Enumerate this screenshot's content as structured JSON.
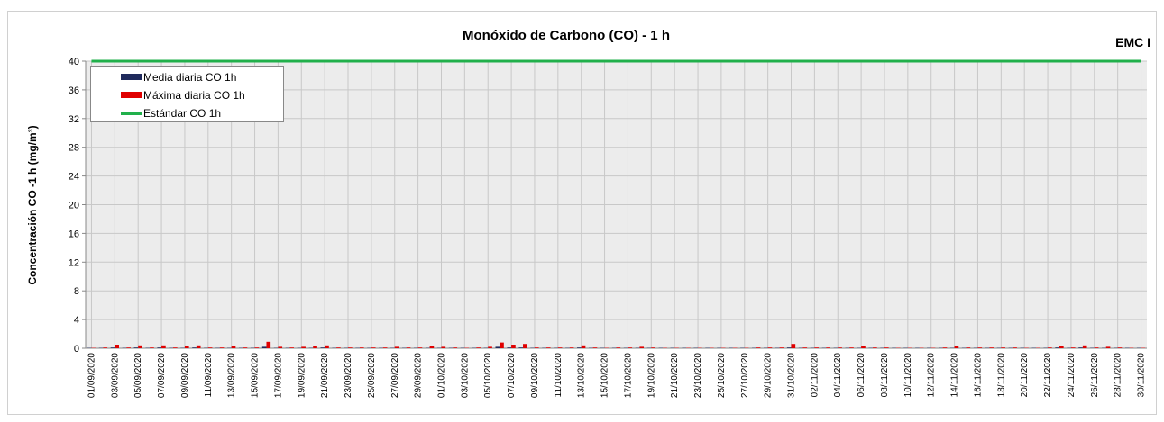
{
  "chart_data": {
    "type": "bar",
    "title": "Monóxido de Carbono (CO) - 1 h",
    "annotation": "EMC I",
    "y_label": "Concentración  CO -1 h (mg/m³)",
    "categories": [
      "01/09/2020",
      null,
      "03/09/2020",
      null,
      "05/09/2020",
      null,
      "07/09/2020",
      null,
      "09/09/2020",
      null,
      "11/09/2020",
      null,
      "13/09/2020",
      null,
      "15/09/2020",
      null,
      "17/09/2020",
      null,
      "19/09/2020",
      null,
      "21/09/2020",
      null,
      "23/09/2020",
      null,
      "25/09/2020",
      null,
      "27/09/2020",
      null,
      "29/09/2020",
      null,
      "01/10/2020",
      null,
      "03/10/2020",
      null,
      "05/10/2020",
      null,
      "07/10/2020",
      null,
      "09/10/2020",
      null,
      "11/10/2020",
      null,
      "13/10/2020",
      null,
      "15/10/2020",
      null,
      "17/10/2020",
      null,
      "19/10/2020",
      null,
      "21/10/2020",
      null,
      "23/10/2020",
      null,
      "25/10/2020",
      null,
      "27/10/2020",
      null,
      "29/10/2020",
      null,
      "31/10/2020",
      null,
      "02/11/2020",
      null,
      "04/11/2020",
      null,
      "06/11/2020",
      null,
      "08/11/2020",
      null,
      "10/11/2020",
      null,
      "12/11/2020",
      null,
      "14/11/2020",
      null,
      "16/11/2020",
      null,
      "18/11/2020",
      null,
      "20/11/2020",
      null,
      "22/11/2020",
      null,
      "24/11/2020",
      null,
      "26/11/2020",
      null,
      "28/11/2020",
      null,
      "30/11/2020"
    ],
    "series": [
      {
        "name": "Media diaria CO 1h",
        "color": "#1f2a5c",
        "values": [
          0.05,
          0.05,
          0.1,
          0.05,
          0.1,
          0.05,
          0.1,
          0.05,
          0.05,
          0.1,
          0.05,
          0.05,
          0.05,
          0.05,
          0.05,
          0.2,
          0.05,
          0.05,
          0.05,
          0.05,
          0.1,
          0.05,
          0.05,
          0.05,
          0.05,
          0.05,
          0.05,
          0.05,
          0.05,
          0.05,
          0.05,
          0.05,
          0.05,
          0.05,
          0.05,
          0.2,
          0.1,
          0.1,
          0.05,
          0.05,
          0.05,
          0.05,
          0.1,
          0.05,
          0.05,
          0.05,
          0.05,
          0.05,
          0.05,
          0.05,
          0.05,
          0.05,
          0.05,
          0.05,
          0.05,
          0.05,
          0.05,
          0.05,
          0.05,
          0.05,
          0.1,
          0.05,
          0.05,
          0.05,
          0.05,
          0.05,
          0.05,
          0.05,
          0.05,
          0.05,
          0.05,
          0.05,
          0.05,
          0.05,
          0.05,
          0.05,
          0.05,
          0.05,
          0.05,
          0.05,
          0.05,
          0.05,
          0.05,
          0.1,
          0.05,
          0.1,
          0.05,
          0.05,
          0.05,
          0.05,
          0.05
        ]
      },
      {
        "name": "Máxima diaria CO 1h",
        "color": "#e00000",
        "values": [
          0.05,
          0.1,
          0.5,
          0.1,
          0.4,
          0.1,
          0.4,
          0.1,
          0.3,
          0.4,
          0.1,
          0.1,
          0.3,
          0.1,
          0.1,
          0.9,
          0.2,
          0.1,
          0.2,
          0.3,
          0.4,
          0.1,
          0.1,
          0.1,
          0.1,
          0.1,
          0.2,
          0.1,
          0.1,
          0.3,
          0.2,
          0.1,
          0.05,
          0.1,
          0.2,
          0.8,
          0.5,
          0.6,
          0.1,
          0.1,
          0.1,
          0.1,
          0.4,
          0.1,
          0.05,
          0.1,
          0.1,
          0.2,
          0.1,
          0.05,
          0.05,
          0.05,
          0.05,
          0.05,
          0.05,
          0.05,
          0.05,
          0.1,
          0.1,
          0.1,
          0.6,
          0.1,
          0.1,
          0.1,
          0.1,
          0.1,
          0.3,
          0.1,
          0.1,
          0.05,
          0.05,
          0.05,
          0.05,
          0.1,
          0.3,
          0.1,
          0.1,
          0.1,
          0.1,
          0.1,
          0.05,
          0.05,
          0.1,
          0.3,
          0.1,
          0.4,
          0.1,
          0.2,
          0.1,
          0.05,
          0.05
        ]
      },
      {
        "name": "Estándar CO 1h",
        "color": "#21b04b",
        "kind": "line",
        "values": [
          40,
          40,
          40,
          40,
          40,
          40,
          40,
          40,
          40,
          40,
          40,
          40,
          40,
          40,
          40,
          40,
          40,
          40,
          40,
          40,
          40,
          40,
          40,
          40,
          40,
          40,
          40,
          40,
          40,
          40,
          40,
          40,
          40,
          40,
          40,
          40,
          40,
          40,
          40,
          40,
          40,
          40,
          40,
          40,
          40,
          40,
          40,
          40,
          40,
          40,
          40,
          40,
          40,
          40,
          40,
          40,
          40,
          40,
          40,
          40,
          40,
          40,
          40,
          40,
          40,
          40,
          40,
          40,
          40,
          40,
          40,
          40,
          40,
          40,
          40,
          40,
          40,
          40,
          40,
          40,
          40,
          40,
          40,
          40,
          40,
          40,
          40,
          40,
          40,
          40,
          40
        ]
      }
    ],
    "ylim": [
      0,
      40
    ],
    "yticks": [
      0,
      4,
      8,
      12,
      16,
      20,
      24,
      28,
      32,
      36,
      40
    ],
    "grid": true,
    "legend": "upper left"
  }
}
